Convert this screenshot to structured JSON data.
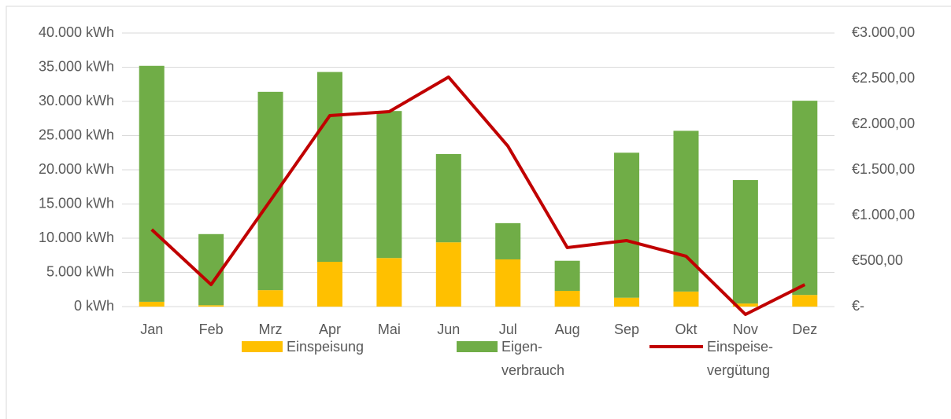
{
  "chart_data": {
    "type": "bar",
    "categories": [
      "Jan",
      "Feb",
      "Mrz",
      "Apr",
      "Mai",
      "Jun",
      "Jul",
      "Aug",
      "Sep",
      "Okt",
      "Nov",
      "Dez"
    ],
    "series": [
      {
        "name": "Einspeisung",
        "color": "#ffc000",
        "values": [
          700,
          200,
          2400,
          6550,
          7100,
          9400,
          6900,
          2300,
          1300,
          2200,
          450,
          1700
        ]
      },
      {
        "name": "Eigen-\nverbrauch",
        "color": "#70ad47",
        "values": [
          34500,
          10400,
          29000,
          27750,
          21500,
          12900,
          5300,
          4400,
          21200,
          23500,
          18050,
          28400
        ]
      },
      {
        "name": "Einspeise-\nvergütung",
        "color": "#c00000",
        "type": "line",
        "axis": "y2",
        "values": [
          845,
          241,
          1164,
          2095,
          2138,
          2517,
          1759,
          647,
          724,
          552,
          -86,
          241
        ]
      }
    ],
    "stacked": true,
    "ylim": [
      0,
      40000
    ],
    "yticks": [
      {
        "value": 0,
        "label": "0 kWh"
      },
      {
        "value": 5000,
        "label": "5.000 kWh"
      },
      {
        "value": 10000,
        "label": "10.000 kWh"
      },
      {
        "value": 15000,
        "label": "15.000 kWh"
      },
      {
        "value": 20000,
        "label": "20.000 kWh"
      },
      {
        "value": 25000,
        "label": "25.000 kWh"
      },
      {
        "value": 30000,
        "label": "30.000 kWh"
      },
      {
        "value": 35000,
        "label": "35.000 kWh"
      },
      {
        "value": 40000,
        "label": "40.000 kWh"
      }
    ],
    "y2lim": [
      0,
      3000
    ],
    "y2ticks": [
      {
        "value": 0,
        "label": "€-"
      },
      {
        "value": 500,
        "label": "€500,00"
      },
      {
        "value": 1000,
        "label": "€1.000,00"
      },
      {
        "value": 1500,
        "label": "€1.500,00"
      },
      {
        "value": 2000,
        "label": "€2.000,00"
      },
      {
        "value": 2500,
        "label": "€2.500,00"
      },
      {
        "value": 3000,
        "label": "€3.000,00"
      }
    ],
    "grid": true,
    "legend": "bottom"
  }
}
